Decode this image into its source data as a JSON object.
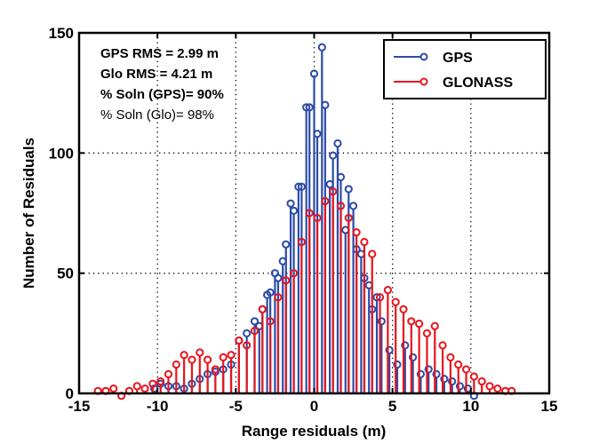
{
  "chart_data": {
    "type": "stem",
    "title": "",
    "xlabel": "Range residuals (m)",
    "ylabel": "Number of Residuals",
    "xlim": [
      -15,
      15
    ],
    "ylim": [
      0,
      150
    ],
    "xticks": [
      "-15",
      "-10",
      "-5",
      "0",
      "5",
      "10",
      "15"
    ],
    "yticks": [
      "0",
      "50",
      "100",
      "150"
    ],
    "grid": "dotted",
    "legend_position": "top-right",
    "annotations": [
      {
        "text": "GPS RMS = 2.99 m",
        "bold": true
      },
      {
        "text": "Glo RMS = 4.21 m",
        "bold": true
      },
      {
        "text": "% Soln (GPS)= 90%",
        "bold": true
      },
      {
        "text": "% Soln (Glo)= 98%",
        "bold": false
      }
    ],
    "series": [
      {
        "name": "GPS",
        "color": "#2b4ba8",
        "x": [
          -10.2,
          -9.8,
          -9.3,
          -8.8,
          -8.3,
          -7.8,
          -7.3,
          -6.8,
          -6.3,
          -5.8,
          -5.3,
          -4.8,
          -4.3,
          -3.8,
          -3.5,
          -3.3,
          -3.0,
          -2.8,
          -2.5,
          -2.3,
          -2.0,
          -1.8,
          -1.5,
          -1.3,
          -1.0,
          -0.8,
          -0.5,
          -0.3,
          0.0,
          0.2,
          0.5,
          0.7,
          1.0,
          1.2,
          1.5,
          1.7,
          2.0,
          2.2,
          2.5,
          2.7,
          3.0,
          3.2,
          3.5,
          3.7,
          4.0,
          4.3,
          4.8,
          5.3,
          5.8,
          6.3,
          6.8,
          7.3,
          7.8,
          8.3,
          8.8,
          9.3,
          9.8,
          10.2
        ],
        "values": [
          2,
          4,
          3,
          3,
          2,
          4,
          6,
          8,
          9,
          10,
          12,
          22,
          25,
          30,
          28,
          35,
          41,
          42,
          50,
          48,
          55,
          62,
          79,
          76,
          86,
          86,
          119,
          119,
          133,
          108,
          144,
          120,
          87,
          99,
          104,
          90,
          68,
          85,
          78,
          60,
          58,
          48,
          45,
          35,
          40,
          30,
          18,
          12,
          20,
          15,
          8,
          10,
          8,
          6,
          5,
          3,
          2,
          -1
        ]
      },
      {
        "name": "GLONASS",
        "color": "#e8141c",
        "x": [
          -13.8,
          -13.3,
          -12.8,
          -12.3,
          -11.8,
          -11.3,
          -10.8,
          -10.3,
          -9.8,
          -9.3,
          -8.8,
          -8.3,
          -7.8,
          -7.3,
          -6.8,
          -6.3,
          -5.8,
          -5.3,
          -4.8,
          -4.3,
          -3.8,
          -3.3,
          -2.8,
          -2.3,
          -1.8,
          -1.3,
          -0.8,
          -0.3,
          0.2,
          0.7,
          1.2,
          1.7,
          2.2,
          2.7,
          3.2,
          3.7,
          4.2,
          4.7,
          5.2,
          5.7,
          6.2,
          6.7,
          7.2,
          7.7,
          8.2,
          8.7,
          9.2,
          9.7,
          10.2,
          10.7,
          11.2,
          11.7,
          12.2,
          12.6
        ],
        "values": [
          1,
          1,
          2,
          -1,
          1,
          3,
          2,
          4,
          5,
          8,
          12,
          16,
          14,
          17,
          14,
          10,
          15,
          16,
          22,
          20,
          26,
          35,
          30,
          40,
          47,
          50,
          63,
          75,
          73,
          80,
          84,
          78,
          73,
          67,
          63,
          58,
          40,
          43,
          38,
          35,
          30,
          29,
          25,
          28,
          20,
          15,
          12,
          10,
          7,
          5,
          3,
          2,
          1,
          1
        ]
      }
    ]
  }
}
